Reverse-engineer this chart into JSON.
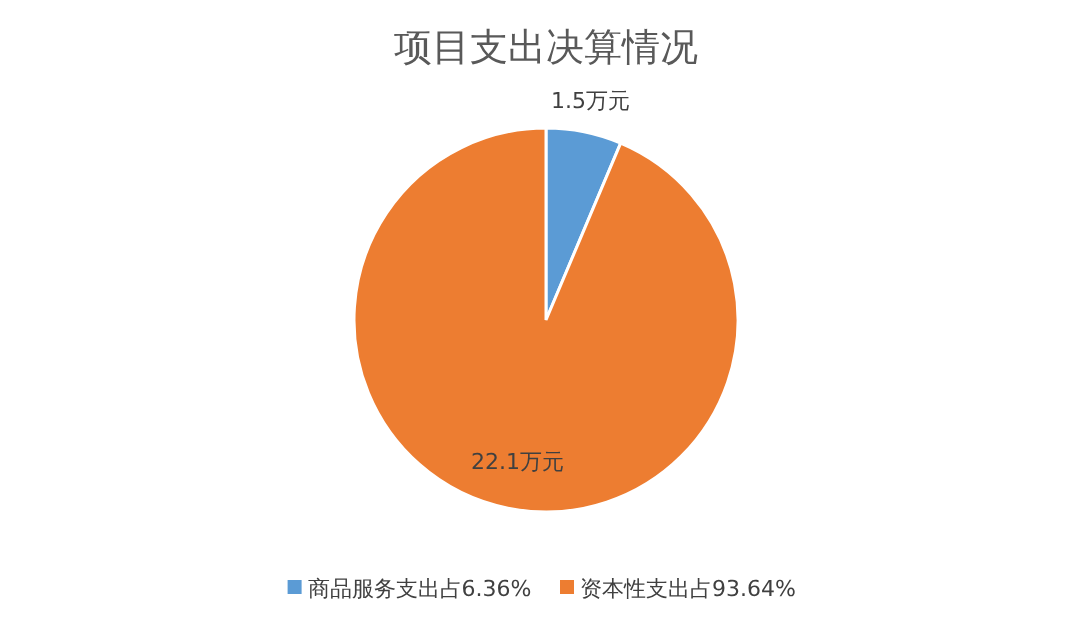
{
  "chart_data": {
    "type": "pie",
    "title": "项目支出决算情况",
    "categories": [
      "商品服务支出占6.36%",
      "资本性支出占93.64%"
    ],
    "values": [
      1.5,
      22.1
    ],
    "value_labels": [
      "1.5万元",
      "22.1万元"
    ],
    "colors": [
      "#5b9bd5",
      "#ed7d31"
    ],
    "legend": "bottom"
  }
}
